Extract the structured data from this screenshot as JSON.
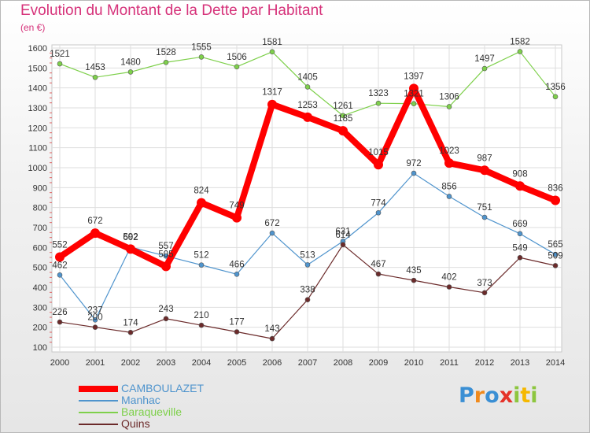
{
  "chart_data": {
    "type": "line",
    "title": "Evolution du Montant de la Dette par Habitant",
    "subtitle": "(en €)",
    "x": [
      "2000",
      "2001",
      "2002",
      "2003",
      "2004",
      "2005",
      "2006",
      "2007",
      "2008",
      "2009",
      "2010",
      "2011",
      "2012",
      "2013",
      "2014"
    ],
    "ylim": [
      100,
      1600
    ],
    "yticks": [
      100,
      200,
      300,
      400,
      500,
      600,
      700,
      800,
      900,
      1000,
      1100,
      1200,
      1300,
      1400,
      1500,
      1600
    ],
    "grid": true,
    "legend_position": "bottom-left",
    "series": [
      {
        "name": "CAMBOULAZET",
        "color": "#ff0000",
        "highlight": true,
        "values": [
          552,
          672,
          592,
          505,
          824,
          749,
          1317,
          1253,
          1185,
          1015,
          1397,
          1023,
          987,
          908,
          836
        ]
      },
      {
        "name": "Manhac",
        "color": "#4f94cd",
        "highlight": false,
        "values": [
          462,
          237,
          602,
          557,
          512,
          466,
          672,
          513,
          631,
          774,
          972,
          856,
          751,
          669,
          565
        ]
      },
      {
        "name": "Baraqueville",
        "color": "#7ed04b",
        "highlight": false,
        "values": [
          1521,
          1453,
          1480,
          1528,
          1555,
          1506,
          1581,
          1405,
          1261,
          1323,
          1321,
          1306,
          1497,
          1582,
          1356
        ]
      },
      {
        "name": "Quins",
        "color": "#6b2a2a",
        "highlight": false,
        "values": [
          226,
          200,
          174,
          243,
          210,
          177,
          143,
          338,
          614,
          467,
          435,
          402,
          373,
          549,
          509
        ]
      }
    ]
  },
  "logo": {
    "text": "Proxiti",
    "colors": [
      "#3a8fd4",
      "#f08a1c",
      "#3a8fd4",
      "#e53228",
      "#8dc63f",
      "#f5b800",
      "#8dc63f"
    ]
  }
}
